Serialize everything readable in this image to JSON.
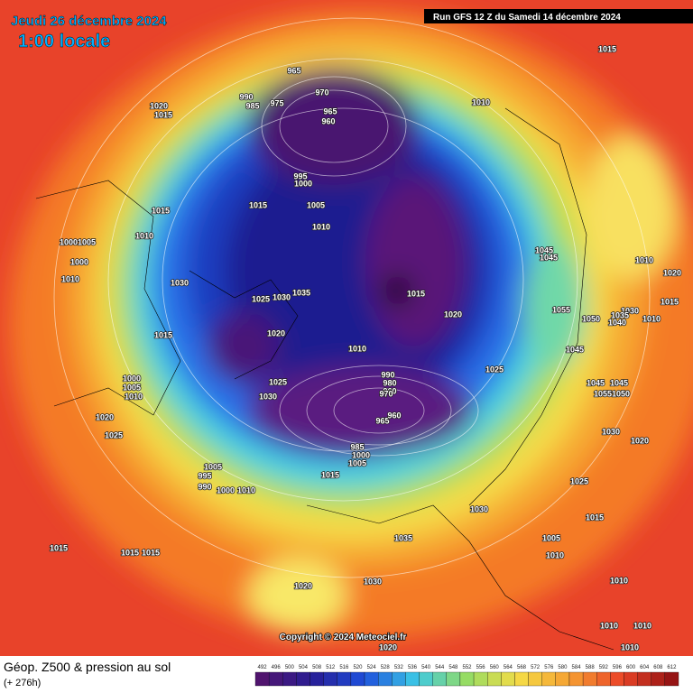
{
  "header": {
    "date": "Jeudi 26 décembre 2024",
    "time": "1:00 locale",
    "run": "Run GFS 12 Z du Samedi 14 décembre 2024"
  },
  "copyright": "Copyright © 2024 Meteociel.fr",
  "footer": {
    "title": "Géop. Z500 & pression au sol",
    "lead": "(+ 276h)"
  },
  "isobars": [
    1015,
    965,
    970,
    990,
    985,
    975,
    965,
    960,
    1020,
    1015,
    1010,
    995,
    1000,
    1015,
    1015,
    1005,
    1010,
    1010,
    1005,
    1000,
    1000,
    1010,
    1030,
    1025,
    1030,
    1035,
    1015,
    1020,
    1015,
    1020,
    1010,
    1045,
    1045,
    1010,
    1020,
    1015,
    1055,
    1050,
    1030,
    1035,
    1040,
    1010,
    1045,
    1025,
    990,
    980,
    960,
    970,
    1025,
    1030,
    1000,
    1005,
    1010,
    1045,
    1045,
    1055,
    1050,
    1020,
    965,
    960,
    1025,
    1030,
    1020,
    985,
    1000,
    1005,
    1005,
    995,
    990,
    1015,
    1000,
    1010,
    1025,
    1030,
    1015,
    1005,
    1035,
    1010,
    1015,
    1015,
    1015,
    1030,
    1020,
    1010,
    1010,
    1010,
    1020,
    1010
  ],
  "scale": [
    492,
    496,
    500,
    504,
    508,
    512,
    516,
    520,
    524,
    528,
    532,
    536,
    540,
    544,
    548,
    552,
    556,
    560,
    564,
    568,
    572,
    576,
    580,
    584,
    588,
    592,
    596,
    600,
    604,
    608,
    612
  ]
}
